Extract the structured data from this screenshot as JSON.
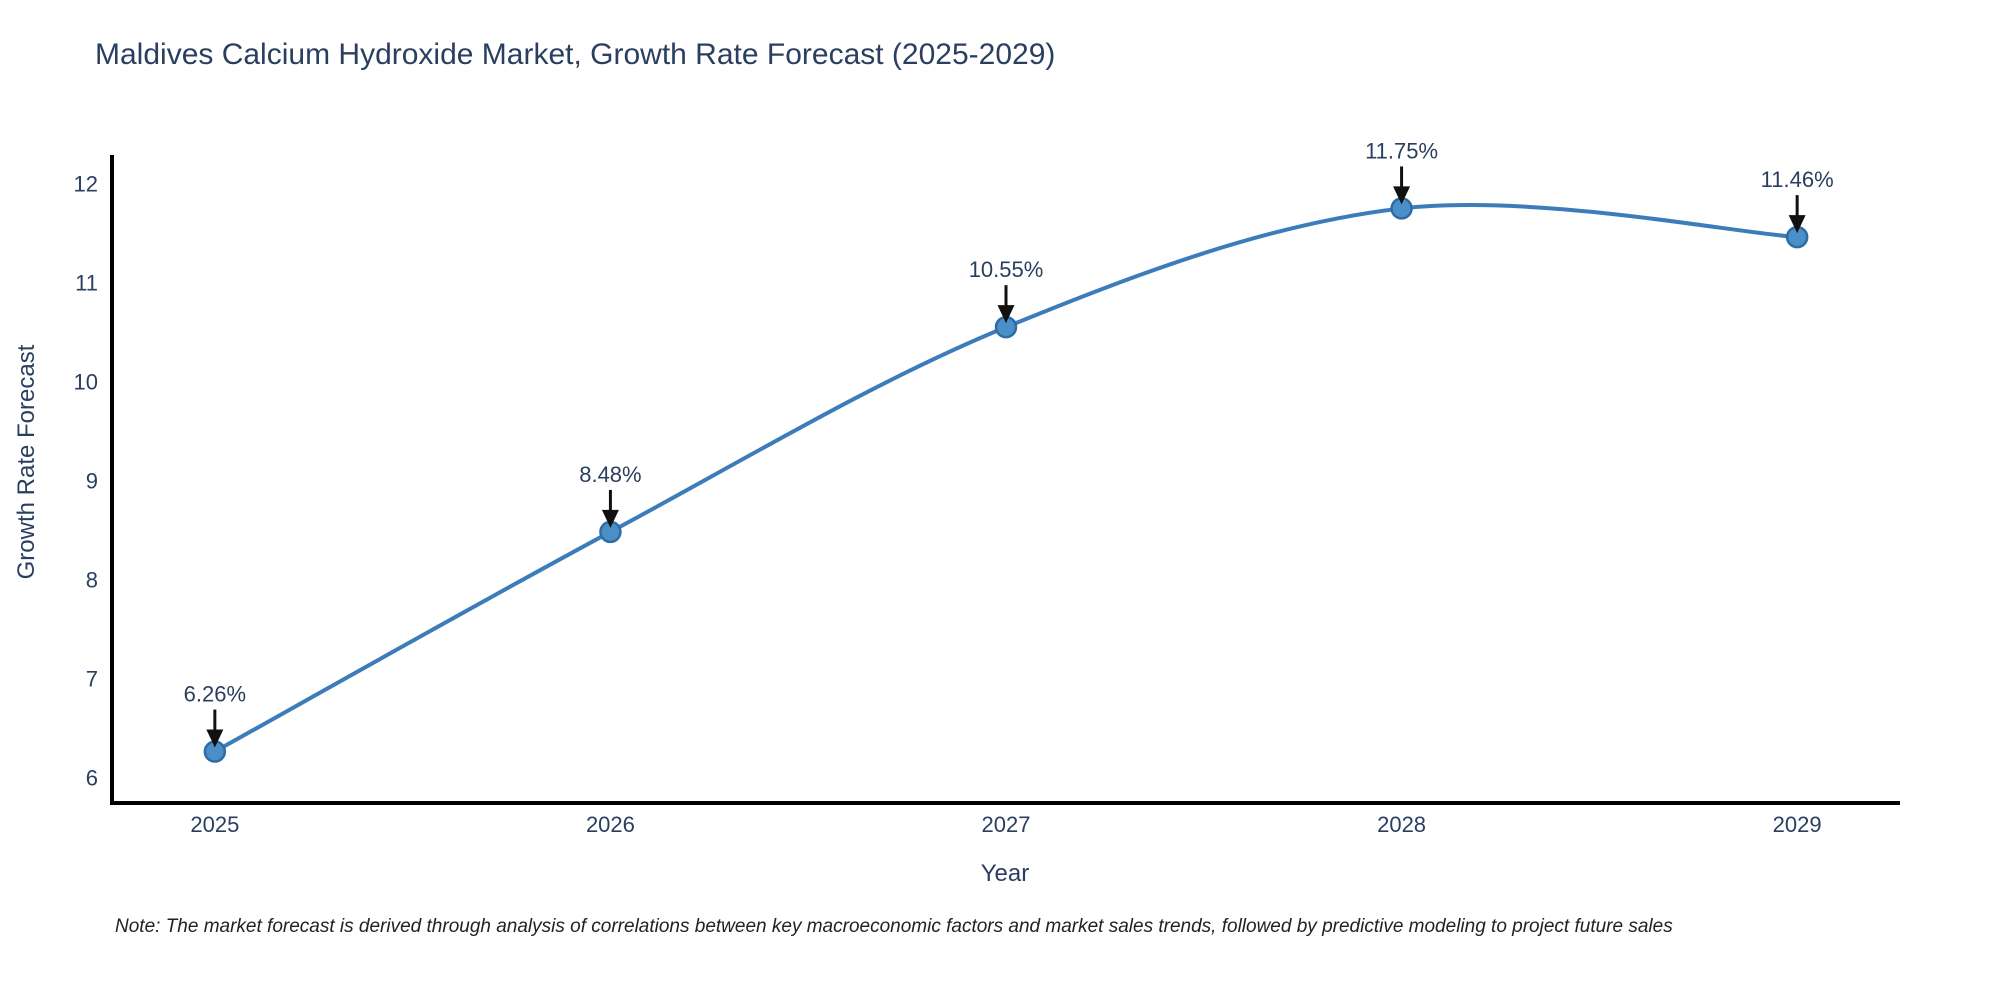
{
  "chart_data": {
    "type": "line",
    "title": "Maldives Calcium Hydroxide Market, Growth Rate Forecast (2025-2029)",
    "xlabel": "Year",
    "ylabel": "Growth Rate Forecast",
    "x": [
      2025,
      2026,
      2027,
      2028,
      2029
    ],
    "values": [
      6.26,
      8.48,
      10.55,
      11.75,
      11.46
    ],
    "point_labels": [
      "6.26%",
      "8.48%",
      "10.55%",
      "11.75%",
      "11.46%"
    ],
    "x_tick_labels": [
      "2025",
      "2026",
      "2027",
      "2028",
      "2029"
    ],
    "y_ticks": [
      6,
      7,
      8,
      9,
      10,
      11,
      12
    ],
    "xlim": [
      2024.74,
      2029.26
    ],
    "ylim": [
      5.74,
      12.29
    ],
    "grid": false,
    "legend": "none",
    "line_smoothing": "spline",
    "colors": {
      "line": "#3d7cba",
      "marker_fill": "#4a8fc7",
      "marker_edge": "#2e6da4",
      "axis_line": "#000000",
      "tick_text": "#2a3f5f",
      "annotation_text": "#2a3f5f",
      "annotation_arrow": "#111111",
      "title_text": "#2a3f5f",
      "note_text": "#222222"
    }
  },
  "note": {
    "text": "Note: The market forecast is derived through analysis of correlations between key macroeconomic factors and market sales trends, followed by predictive modeling to project future sales"
  }
}
